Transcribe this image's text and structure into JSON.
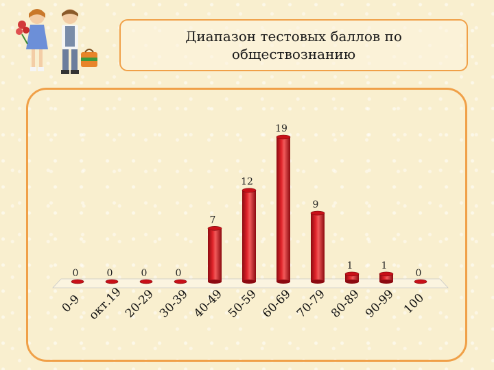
{
  "header": {
    "title": "Диапазон тестовых баллов по обществознанию"
  },
  "chart_data": {
    "type": "bar",
    "title": "Диапазон тестовых баллов по обществознанию",
    "categories": [
      "0-9",
      "окт.19",
      "20-29",
      "30-39",
      "40-49",
      "50-59",
      "60-69",
      "70-79",
      "80-89",
      "90-99",
      "100"
    ],
    "values": [
      0,
      0,
      0,
      0,
      7,
      12,
      19,
      9,
      1,
      1,
      0
    ],
    "data_labels": [
      "0",
      "0",
      "0",
      "0",
      "7",
      "12",
      "19",
      "9",
      "1",
      "1",
      "0"
    ],
    "ylim": [
      0,
      19
    ],
    "grid": false,
    "legend": "none",
    "bar_style": "3d-cylinder",
    "colors": {
      "bar": "#d8141e",
      "bar_dark": "#8c0a10",
      "bar_light": "#f25a5a",
      "frame": "#f0a048",
      "background": "#f9efcf"
    }
  }
}
